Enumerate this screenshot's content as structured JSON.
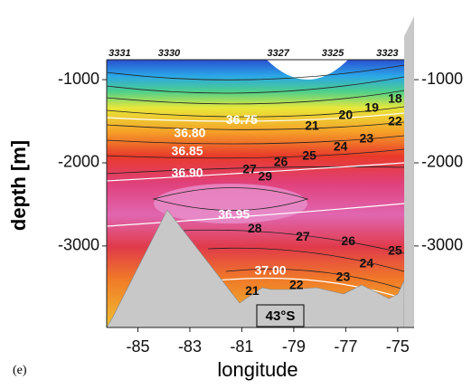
{
  "chart_data": {
    "type": "contour",
    "x_label": "longitude",
    "y_label": "depth [m]",
    "panel_label": "(e)",
    "section_label": "43°S",
    "xlim": [
      -86.2,
      -74.75
    ],
    "xticks": [
      -85,
      -83,
      -81,
      -79,
      -77,
      -75
    ],
    "ylim": [
      -3980,
      -760
    ],
    "yticks": [
      -1000,
      -2000,
      -3000
    ],
    "stations": [
      {
        "label": "3331",
        "x": -85.7
      },
      {
        "label": "3330",
        "x": -83.8
      },
      {
        "label": "3327",
        "x": -79.6
      },
      {
        "label": "3325",
        "x": -77.5
      },
      {
        "label": "3323",
        "x": -75.4
      }
    ],
    "contour_labels": [
      {
        "text": "36.75",
        "x": -81.0,
        "y": -1490,
        "color": "#ffffff"
      },
      {
        "text": "36.80",
        "x": -83.0,
        "y": -1652,
        "color": "#ffffff"
      },
      {
        "text": "36.85",
        "x": -83.1,
        "y": -1870,
        "color": "#ffffff"
      },
      {
        "text": "36.90",
        "x": -83.1,
        "y": -2130,
        "color": "#ffffff"
      },
      {
        "text": "36.95",
        "x": -81.3,
        "y": -2630,
        "color": "#ffffff"
      },
      {
        "text": "37.00",
        "x": -79.9,
        "y": -3306,
        "color": "#ffffff"
      },
      {
        "text": "29",
        "x": -80.1,
        "y": -2173,
        "color": "#111111"
      },
      {
        "text": "28",
        "x": -80.5,
        "y": -2795,
        "color": "#111111"
      },
      {
        "text": "27",
        "x": -80.7,
        "y": -2087,
        "color": "#111111"
      },
      {
        "text": "27",
        "x": -78.65,
        "y": -2893,
        "color": "#111111"
      },
      {
        "text": "26",
        "x": -79.5,
        "y": -2000,
        "color": "#111111"
      },
      {
        "text": "26",
        "x": -76.9,
        "y": -2948,
        "color": "#111111"
      },
      {
        "text": "25",
        "x": -78.4,
        "y": -1924,
        "color": "#111111"
      },
      {
        "text": "25",
        "x": -75.1,
        "y": -3066,
        "color": "#111111"
      },
      {
        "text": "24",
        "x": -77.2,
        "y": -1815,
        "color": "#111111"
      },
      {
        "text": "24",
        "x": -76.2,
        "y": -3219,
        "color": "#111111"
      },
      {
        "text": "23",
        "x": -76.2,
        "y": -1717,
        "color": "#111111"
      },
      {
        "text": "23",
        "x": -77.1,
        "y": -3382,
        "color": "#111111"
      },
      {
        "text": "22",
        "x": -75.1,
        "y": -1510,
        "color": "#111111"
      },
      {
        "text": "22",
        "x": -78.9,
        "y": -3480,
        "color": "#111111"
      },
      {
        "text": "21",
        "x": -78.3,
        "y": -1565,
        "color": "#111111"
      },
      {
        "text": "21",
        "x": -80.6,
        "y": -3546,
        "color": "#111111"
      },
      {
        "text": "20",
        "x": -77.0,
        "y": -1434,
        "color": "#111111"
      },
      {
        "text": "19",
        "x": -76.0,
        "y": -1347,
        "color": "#111111"
      },
      {
        "text": "18",
        "x": -75.1,
        "y": -1238,
        "color": "#111111"
      }
    ]
  }
}
